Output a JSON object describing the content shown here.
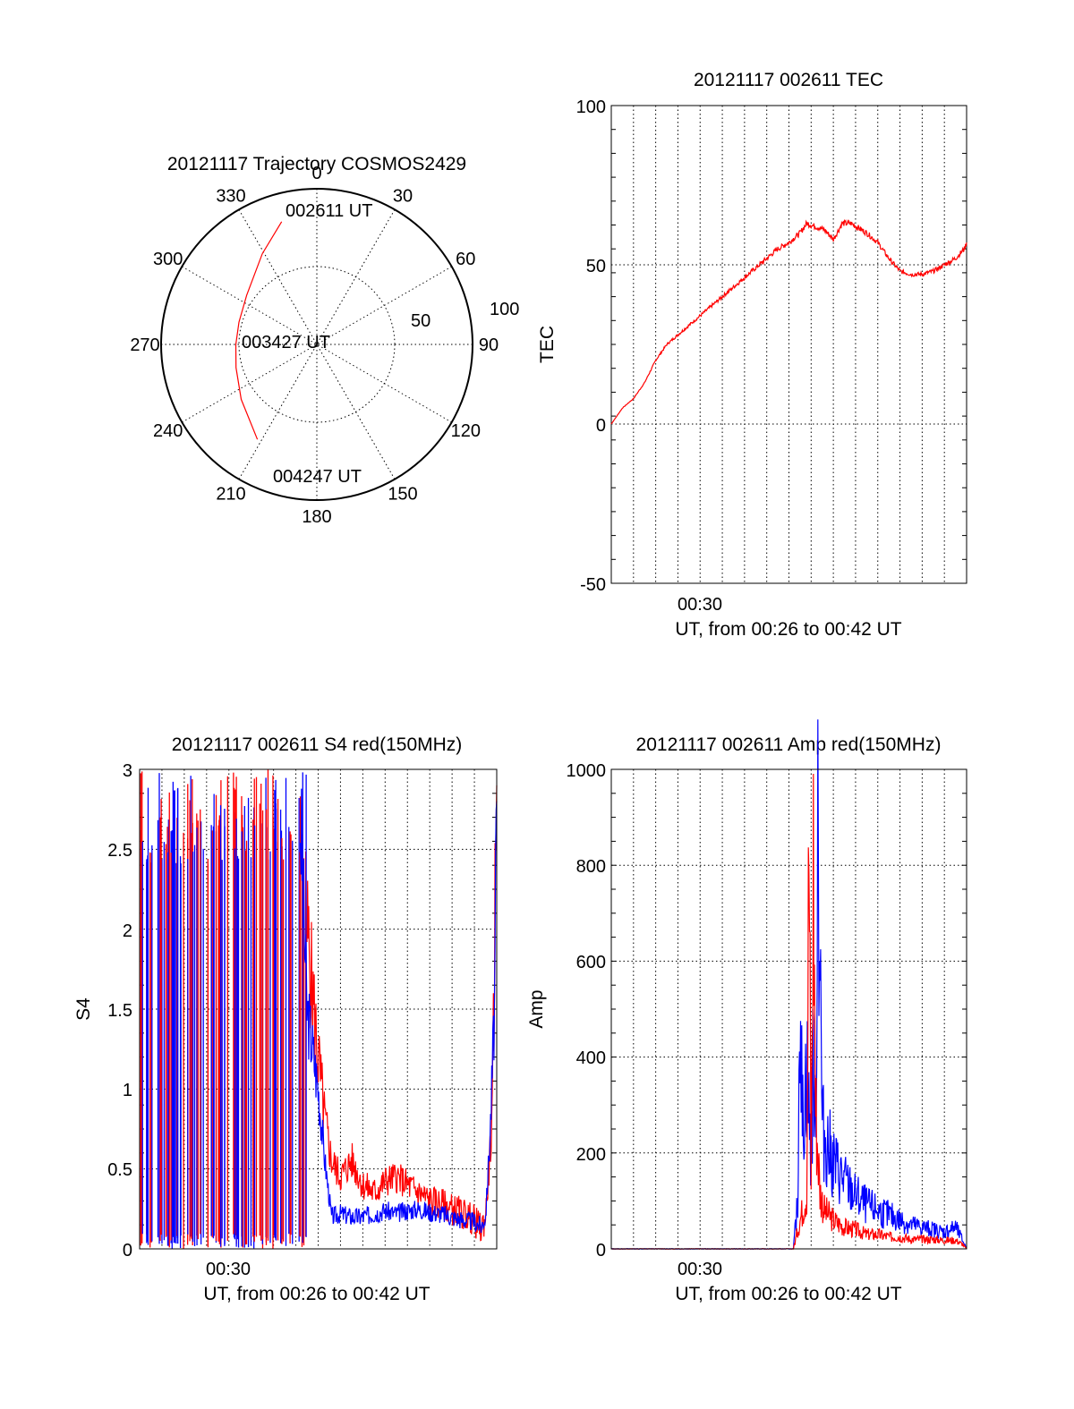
{
  "chart_data": [
    {
      "type": "polar",
      "title": "20121117 Trajectory COSMOS2429",
      "azimuth_labels": [
        "0",
        "30",
        "60",
        "90",
        "120",
        "150",
        "180",
        "210",
        "240",
        "270",
        "300",
        "330"
      ],
      "radial_labels": [
        "50",
        "100"
      ],
      "start_label": "002611 UT",
      "mid_label": "003427 UT",
      "end_label": "004247 UT",
      "trajectory": {
        "color": "#ff0000",
        "points": [
          [
            344,
            82
          ],
          [
            329,
            68
          ],
          [
            305,
            55
          ],
          [
            286,
            52
          ],
          [
            270,
            52
          ],
          [
            254,
            54
          ],
          [
            234,
            60
          ],
          [
            212,
            72
          ]
        ]
      }
    },
    {
      "type": "line",
      "title": "20121117 002611 TEC",
      "ylabel": "TEC",
      "xlabel": "UT, from 00:26 to 00:42 UT",
      "x_tick_labels": [
        "00:30"
      ],
      "y_ticks": [
        "100",
        "50",
        "0",
        "-50"
      ],
      "ylim": [
        -50,
        100
      ],
      "series": [
        {
          "color": "#ff0000",
          "points": [
            [
              0,
              0
            ],
            [
              0.5,
              5
            ],
            [
              1.0,
              8
            ],
            [
              1.5,
              13
            ],
            [
              2.0,
              20
            ],
            [
              2.5,
              25
            ],
            [
              3.0,
              28
            ],
            [
              3.5,
              31
            ],
            [
              4.0,
              34
            ],
            [
              4.5,
              37
            ],
            [
              5.0,
              40
            ],
            [
              5.5,
              43
            ],
            [
              6.0,
              46
            ],
            [
              6.5,
              49
            ],
            [
              7.0,
              52
            ],
            [
              7.5,
              55
            ],
            [
              8.0,
              57
            ],
            [
              8.5,
              60
            ],
            [
              8.8,
              63
            ],
            [
              9.2,
              62
            ],
            [
              9.6,
              61
            ],
            [
              10.0,
              58
            ],
            [
              10.4,
              63
            ],
            [
              10.8,
              63
            ],
            [
              11.5,
              60
            ],
            [
              12.0,
              57
            ],
            [
              12.5,
              52
            ],
            [
              13.0,
              48
            ],
            [
              13.5,
              47
            ],
            [
              14.0,
              47
            ],
            [
              14.5,
              48
            ],
            [
              15.0,
              50
            ],
            [
              15.5,
              52
            ],
            [
              15.9,
              55
            ],
            [
              16.0,
              57
            ]
          ]
        }
      ]
    },
    {
      "type": "line",
      "title": "20121117 002611 S4 red(150MHz)",
      "ylabel": "S4",
      "xlabel": "UT, from 00:26 to 00:42 UT",
      "x_tick_labels": [
        "00:30"
      ],
      "y_ticks": [
        "3",
        "2.5",
        "2",
        "1.5",
        "1",
        "0.5",
        "0"
      ],
      "ylim": [
        0,
        3
      ],
      "series": [
        {
          "color": "#0000ff",
          "points": [
            [
              7.2,
              2.7
            ],
            [
              7.5,
              1.5
            ],
            [
              8.0,
              1.0
            ],
            [
              8.3,
              0.55
            ],
            [
              8.6,
              0.2
            ],
            [
              9.0,
              0.22
            ],
            [
              9.5,
              0.2
            ],
            [
              10.0,
              0.2
            ],
            [
              10.5,
              0.22
            ],
            [
              11.0,
              0.24
            ],
            [
              11.5,
              0.22
            ],
            [
              12.0,
              0.24
            ],
            [
              12.5,
              0.25
            ],
            [
              13.0,
              0.23
            ],
            [
              13.5,
              0.22
            ],
            [
              14.0,
              0.2
            ],
            [
              14.5,
              0.18
            ],
            [
              15.0,
              0.17
            ],
            [
              15.3,
              0.14
            ],
            [
              15.5,
              0.2
            ],
            [
              15.7,
              0.7
            ],
            [
              15.9,
              1.5
            ],
            [
              16.0,
              2.8
            ]
          ]
        },
        {
          "color": "#ff0000",
          "points": [
            [
              7.5,
              2.0
            ],
            [
              8.0,
              1.2
            ],
            [
              8.3,
              0.8
            ],
            [
              8.6,
              0.55
            ],
            [
              9.0,
              0.45
            ],
            [
              9.5,
              0.55
            ],
            [
              10.0,
              0.4
            ],
            [
              10.5,
              0.35
            ],
            [
              11.0,
              0.42
            ],
            [
              11.5,
              0.45
            ],
            [
              12.0,
              0.4
            ],
            [
              12.5,
              0.35
            ],
            [
              13.0,
              0.3
            ],
            [
              13.5,
              0.28
            ],
            [
              14.0,
              0.25
            ],
            [
              14.5,
              0.22
            ],
            [
              15.0,
              0.18
            ],
            [
              15.3,
              0.12
            ],
            [
              15.5,
              0.2
            ],
            [
              15.8,
              0.8
            ],
            [
              16.0,
              2.9
            ]
          ]
        }
      ]
    },
    {
      "type": "line",
      "title": "20121117 002611 Amp red(150MHz)",
      "ylabel": "Amp",
      "xlabel": "UT, from 00:26 to 00:42 UT",
      "x_tick_labels": [
        "00:30"
      ],
      "y_ticks": [
        "1000",
        "800",
        "600",
        "400",
        "200",
        "0"
      ],
      "ylim": [
        0,
        1000
      ],
      "series": [
        {
          "color": "#0000ff",
          "points": [
            [
              0,
              0
            ],
            [
              8.2,
              0
            ],
            [
              8.4,
              100
            ],
            [
              8.5,
              620
            ],
            [
              8.6,
              250
            ],
            [
              8.8,
              380
            ],
            [
              9.0,
              180
            ],
            [
              9.1,
              420
            ],
            [
              9.2,
              200
            ],
            [
              9.3,
              960
            ],
            [
              9.5,
              250
            ],
            [
              10.0,
              180
            ],
            [
              10.5,
              140
            ],
            [
              11.0,
              110
            ],
            [
              11.5,
              90
            ],
            [
              12.0,
              80
            ],
            [
              12.5,
              70
            ],
            [
              13.0,
              60
            ],
            [
              13.5,
              50
            ],
            [
              14.0,
              45
            ],
            [
              14.5,
              40
            ],
            [
              15.0,
              35
            ],
            [
              15.5,
              45
            ],
            [
              15.8,
              20
            ],
            [
              16.0,
              0
            ]
          ]
        },
        {
          "color": "#ff0000",
          "points": [
            [
              0,
              0
            ],
            [
              8.2,
              0
            ],
            [
              8.5,
              60
            ],
            [
              8.8,
              120
            ],
            [
              8.9,
              860
            ],
            [
              9.0,
              150
            ],
            [
              9.1,
              820
            ],
            [
              9.2,
              300
            ],
            [
              9.4,
              120
            ],
            [
              9.6,
              80
            ],
            [
              10.0,
              60
            ],
            [
              10.5,
              45
            ],
            [
              11.0,
              40
            ],
            [
              11.5,
              30
            ],
            [
              12.0,
              30
            ],
            [
              12.5,
              25
            ],
            [
              13.0,
              25
            ],
            [
              13.5,
              20
            ],
            [
              14.0,
              20
            ],
            [
              14.5,
              20
            ],
            [
              15.0,
              18
            ],
            [
              15.5,
              18
            ],
            [
              15.8,
              10
            ],
            [
              16.0,
              0
            ]
          ]
        }
      ]
    }
  ]
}
